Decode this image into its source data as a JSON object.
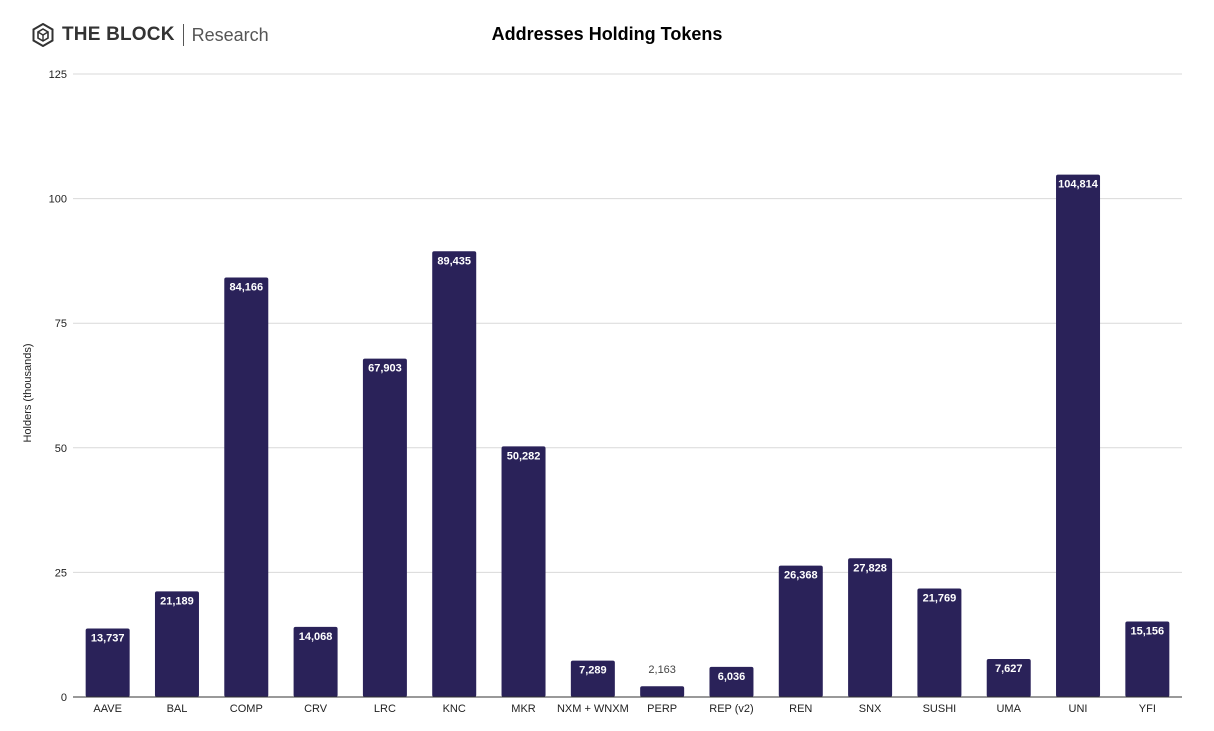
{
  "header": {
    "brand": "THE BLOCK",
    "sub_brand": "Research",
    "logo_icon": "hexagon-cube-icon"
  },
  "chart_data": {
    "type": "bar",
    "title": "Addresses Holding Tokens",
    "xlabel": "",
    "ylabel": "Holders (thousands)",
    "ylim": [
      0,
      125
    ],
    "yticks": [
      0,
      25,
      50,
      75,
      100,
      125
    ],
    "grid": true,
    "legend": "none",
    "bar_color": "#2a2259",
    "categories": [
      "AAVE",
      "BAL",
      "COMP",
      "CRV",
      "LRC",
      "KNC",
      "MKR",
      "NXM + WNXM",
      "PERP",
      "REP (v2)",
      "REN",
      "SNX",
      "SUSHI",
      "UMA",
      "UNI",
      "YFI"
    ],
    "values": [
      13.737,
      21.189,
      84.166,
      14.068,
      67.903,
      89.435,
      50.282,
      7.289,
      2.163,
      6.036,
      26.368,
      27.828,
      21.769,
      7.627,
      104.814,
      15.156
    ],
    "data_labels": [
      "13,737",
      "21,189",
      "84,166",
      "14,068",
      "67,903",
      "89,435",
      "50,282",
      "7,289",
      "2,163",
      "6,036",
      "26,368",
      "27,828",
      "21,769",
      "7,627",
      "104,814",
      "15,156"
    ]
  }
}
